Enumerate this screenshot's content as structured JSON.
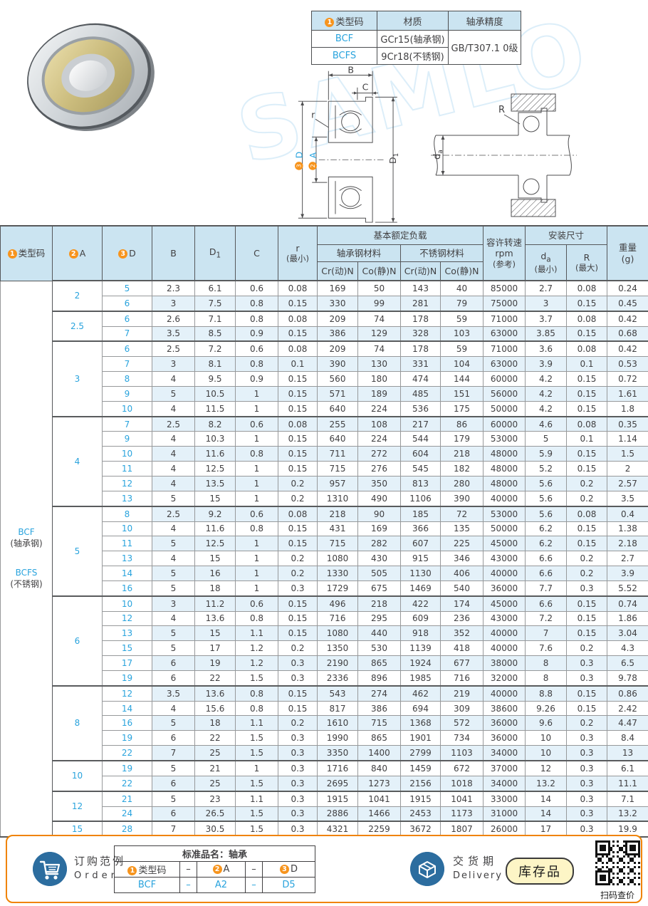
{
  "watermark": "SAMLO",
  "info_table": {
    "col_headers": [
      {
        "num": "1",
        "label": "类型码"
      },
      {
        "label": "材质"
      },
      {
        "label": "轴承精度"
      }
    ],
    "rows": [
      {
        "code": "BCF",
        "material": "GCr15(轴承钢)"
      },
      {
        "code": "BCFS",
        "material": "9Cr18(不锈钢)"
      }
    ],
    "precision": "GB/T307.1 0级"
  },
  "diagram": {
    "b": "B",
    "c": "C",
    "r": "r",
    "d1_base": "D",
    "d1_sub": "1",
    "d_num": "3",
    "d_label": "D",
    "a_num": "2",
    "a_label": "A",
    "R": "R",
    "da_base": "d",
    "da_sub": "a"
  },
  "main_table": {
    "header": {
      "type_code": {
        "num": "1",
        "label": "类型码"
      },
      "a": {
        "num": "2",
        "label": "A"
      },
      "d": {
        "num": "3",
        "label": "D"
      },
      "b": "B",
      "d1_base": "D",
      "d1_sub": "1",
      "c": "C",
      "r_l1": "r",
      "r_l2": "(最小)",
      "load_group": "基本额定负载",
      "bearing_steel": "轴承钢材料",
      "stainless_steel": "不锈钢材料",
      "cr": "Cr(动)N",
      "co": "Co(静)N",
      "speed_l1": "容许转速",
      "speed_l2": "rpm",
      "speed_l3": "(参考)",
      "mount_group": "安装尺寸",
      "da_base": "d",
      "da_sub": "a",
      "da_l2": "(最小)",
      "R_l1": "R",
      "R_l2": "(最大)",
      "weight_l1": "重量",
      "weight_l2": "(g)"
    },
    "type_code_cell": [
      "BCF",
      "(轴承钢)",
      "BCFS",
      "(不锈钢)"
    ],
    "groups": [
      {
        "a": "2",
        "rows": [
          {
            "d": "5",
            "v": [
              "2.3",
              "6.1",
              "0.6",
              "0.08",
              "169",
              "50",
              "143",
              "40",
              "85000",
              "2.7",
              "0.08",
              "0.24"
            ]
          },
          {
            "d": "6",
            "v": [
              "3",
              "7.5",
              "0.8",
              "0.15",
              "330",
              "99",
              "281",
              "79",
              "75000",
              "3",
              "0.15",
              "0.45"
            ]
          }
        ]
      },
      {
        "a": "2.5",
        "rows": [
          {
            "d": "6",
            "v": [
              "2.6",
              "7.1",
              "0.8",
              "0.08",
              "209",
              "74",
              "178",
              "59",
              "71000",
              "3.7",
              "0.08",
              "0.42"
            ]
          },
          {
            "d": "7",
            "v": [
              "3.5",
              "8.5",
              "0.9",
              "0.15",
              "386",
              "129",
              "328",
              "103",
              "63000",
              "3.85",
              "0.15",
              "0.68"
            ]
          }
        ]
      },
      {
        "a": "3",
        "rows": [
          {
            "d": "6",
            "v": [
              "2.5",
              "7.2",
              "0.6",
              "0.08",
              "209",
              "74",
              "178",
              "59",
              "71000",
              "3.6",
              "0.08",
              "0.42"
            ]
          },
          {
            "d": "7",
            "v": [
              "3",
              "8.1",
              "0.8",
              "0.1",
              "390",
              "130",
              "331",
              "104",
              "63000",
              "3.9",
              "0.1",
              "0.53"
            ]
          },
          {
            "d": "8",
            "v": [
              "4",
              "9.5",
              "0.9",
              "0.15",
              "560",
              "180",
              "474",
              "144",
              "60000",
              "4.2",
              "0.15",
              "0.72"
            ]
          },
          {
            "d": "9",
            "v": [
              "5",
              "10.5",
              "1",
              "0.15",
              "571",
              "189",
              "485",
              "151",
              "56000",
              "4.2",
              "0.15",
              "1.61"
            ]
          },
          {
            "d": "10",
            "v": [
              "4",
              "11.5",
              "1",
              "0.15",
              "640",
              "224",
              "536",
              "175",
              "50000",
              "4.2",
              "0.15",
              "1.8"
            ]
          }
        ]
      },
      {
        "a": "4",
        "rows": [
          {
            "d": "7",
            "v": [
              "2.5",
              "8.2",
              "0.6",
              "0.08",
              "255",
              "108",
              "217",
              "86",
              "60000",
              "4.6",
              "0.08",
              "0.35"
            ]
          },
          {
            "d": "9",
            "v": [
              "4",
              "10.3",
              "1",
              "0.15",
              "640",
              "224",
              "544",
              "179",
              "53000",
              "5",
              "0.1",
              "1.14"
            ]
          },
          {
            "d": "10",
            "v": [
              "4",
              "11.6",
              "0.8",
              "0.15",
              "711",
              "272",
              "604",
              "218",
              "48000",
              "5.9",
              "0.15",
              "1.5"
            ]
          },
          {
            "d": "11",
            "v": [
              "4",
              "12.5",
              "1",
              "0.15",
              "715",
              "276",
              "545",
              "182",
              "48000",
              "5.2",
              "0.15",
              "2"
            ]
          },
          {
            "d": "12",
            "v": [
              "4",
              "13.5",
              "1",
              "0.2",
              "957",
              "350",
              "813",
              "280",
              "48000",
              "5.6",
              "0.2",
              "2.57"
            ]
          },
          {
            "d": "13",
            "v": [
              "5",
              "15",
              "1",
              "0.2",
              "1310",
              "490",
              "1106",
              "390",
              "40000",
              "5.6",
              "0.2",
              "3.5"
            ]
          }
        ]
      },
      {
        "a": "5",
        "rows": [
          {
            "d": "8",
            "v": [
              "2.5",
              "9.2",
              "0.6",
              "0.08",
              "218",
              "90",
              "185",
              "72",
              "53000",
              "5.6",
              "0.08",
              "0.4"
            ]
          },
          {
            "d": "10",
            "v": [
              "4",
              "11.6",
              "0.8",
              "0.15",
              "431",
              "169",
              "366",
              "135",
              "50000",
              "6.2",
              "0.15",
              "1.38"
            ]
          },
          {
            "d": "11",
            "v": [
              "5",
              "12.5",
              "1",
              "0.15",
              "715",
              "282",
              "607",
              "225",
              "45000",
              "6.2",
              "0.15",
              "2.18"
            ]
          },
          {
            "d": "13",
            "v": [
              "4",
              "15",
              "1",
              "0.2",
              "1080",
              "430",
              "915",
              "346",
              "43000",
              "6.6",
              "0.2",
              "2.7"
            ]
          },
          {
            "d": "14",
            "v": [
              "5",
              "16",
              "1",
              "0.2",
              "1330",
              "505",
              "1130",
              "406",
              "40000",
              "6.6",
              "0.2",
              "3.9"
            ]
          },
          {
            "d": "16",
            "v": [
              "5",
              "18",
              "1",
              "0.3",
              "1729",
              "675",
              "1469",
              "540",
              "36000",
              "7.7",
              "0.3",
              "5.52"
            ]
          }
        ]
      },
      {
        "a": "6",
        "rows": [
          {
            "d": "10",
            "v": [
              "3",
              "11.2",
              "0.6",
              "0.15",
              "496",
              "218",
              "422",
              "174",
              "45000",
              "6.6",
              "0.15",
              "0.74"
            ]
          },
          {
            "d": "12",
            "v": [
              "4",
              "13.6",
              "0.8",
              "0.15",
              "716",
              "295",
              "609",
              "236",
              "43000",
              "7.2",
              "0.15",
              "1.86"
            ]
          },
          {
            "d": "13",
            "v": [
              "5",
              "15",
              "1.1",
              "0.15",
              "1080",
              "440",
              "918",
              "352",
              "40000",
              "7",
              "0.15",
              "3.04"
            ]
          },
          {
            "d": "15",
            "v": [
              "5",
              "17",
              "1.2",
              "0.2",
              "1350",
              "530",
              "1139",
              "418",
              "40000",
              "7.6",
              "0.2",
              "4.3"
            ]
          },
          {
            "d": "17",
            "v": [
              "6",
              "19",
              "1.2",
              "0.3",
              "2190",
              "865",
              "1924",
              "677",
              "38000",
              "8",
              "0.3",
              "6.5"
            ]
          },
          {
            "d": "19",
            "v": [
              "6",
              "22",
              "1.5",
              "0.3",
              "2336",
              "896",
              "1985",
              "716",
              "32000",
              "8",
              "0.3",
              "9.78"
            ]
          }
        ]
      },
      {
        "a": "8",
        "rows": [
          {
            "d": "12",
            "v": [
              "3.5",
              "13.6",
              "0.8",
              "0.15",
              "543",
              "274",
              "462",
              "219",
              "40000",
              "8.8",
              "0.15",
              "0.86"
            ]
          },
          {
            "d": "14",
            "v": [
              "4",
              "15.6",
              "0.8",
              "0.15",
              "817",
              "386",
              "694",
              "309",
              "38600",
              "9.26",
              "0.15",
              "2.42"
            ]
          },
          {
            "d": "16",
            "v": [
              "5",
              "18",
              "1.1",
              "0.2",
              "1610",
              "715",
              "1368",
              "572",
              "36000",
              "9.6",
              "0.2",
              "4.47"
            ]
          },
          {
            "d": "19",
            "v": [
              "6",
              "22",
              "1.5",
              "0.3",
              "1990",
              "865",
              "1901",
              "734",
              "36000",
              "10",
              "0.3",
              "8.4"
            ]
          },
          {
            "d": "22",
            "v": [
              "7",
              "25",
              "1.5",
              "0.3",
              "3350",
              "1400",
              "2799",
              "1103",
              "34000",
              "10",
              "0.3",
              "13"
            ]
          }
        ]
      },
      {
        "a": "10",
        "rows": [
          {
            "d": "19",
            "v": [
              "5",
              "21",
              "1",
              "0.3",
              "1716",
              "840",
              "1459",
              "672",
              "37000",
              "12",
              "0.3",
              "6.1"
            ]
          },
          {
            "d": "22",
            "v": [
              "6",
              "25",
              "1.5",
              "0.3",
              "2695",
              "1273",
              "2156",
              "1018",
              "34000",
              "13.2",
              "0.3",
              "11.1"
            ]
          }
        ]
      },
      {
        "a": "12",
        "rows": [
          {
            "d": "21",
            "v": [
              "5",
              "23",
              "1.1",
              "0.3",
              "1915",
              "1041",
              "1915",
              "1041",
              "33000",
              "14",
              "0.3",
              "7.1"
            ]
          },
          {
            "d": "24",
            "v": [
              "6",
              "26.5",
              "1.5",
              "0.3",
              "2886",
              "1466",
              "2453",
              "1173",
              "31000",
              "14",
              "0.3",
              "13.2"
            ]
          }
        ]
      },
      {
        "a": "15",
        "rows": [
          {
            "d": "28",
            "v": [
              "7",
              "30.5",
              "1.5",
              "0.3",
              "4321",
              "2259",
              "3672",
              "1807",
              "26000",
              "17",
              "0.3",
              "19.9"
            ]
          }
        ]
      }
    ]
  },
  "footer": {
    "order_title_cn": "订购范例",
    "order_title_en": "Order",
    "order_table": {
      "title": "标准品名：轴承",
      "header": [
        {
          "num": "1",
          "label": "类型码"
        },
        {
          "label": "–"
        },
        {
          "num": "2",
          "label": "A"
        },
        {
          "label": "–"
        },
        {
          "num": "3",
          "label": "D"
        }
      ],
      "values": [
        "BCF",
        "–",
        "A2",
        "–",
        "D5"
      ]
    },
    "delivery_cn": "交货期",
    "delivery_en": "Delivery",
    "stock_badge": "库存品",
    "qr_caption": "扫码查价"
  }
}
